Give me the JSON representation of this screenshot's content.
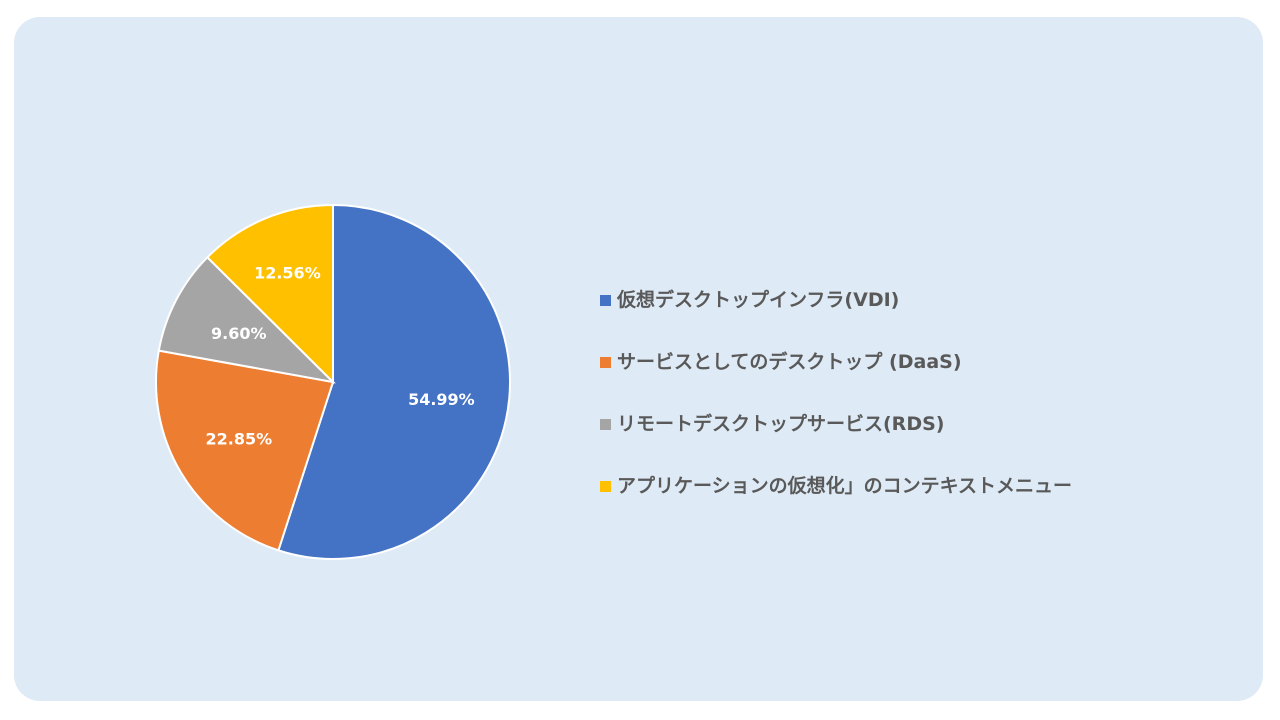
{
  "chart_data": {
    "type": "pie",
    "title": "",
    "categories": [
      "仮想デスクトップインフラ(VDI)",
      "サービスとしてのデスクトップ (DaaS)",
      "リモートデスクトップサービス(RDS)",
      "アプリケーションの仮想化」のコンテキストメニュー"
    ],
    "values": [
      54.99,
      22.85,
      9.6,
      12.56
    ],
    "data_labels": [
      "54.99%",
      "22.85%",
      "9.60%",
      "12.56%"
    ],
    "colors": [
      "#4472c4",
      "#ed7d31",
      "#a5a5a5",
      "#ffc000"
    ],
    "legend_position": "right",
    "start_angle": "top",
    "direction": "clockwise"
  }
}
